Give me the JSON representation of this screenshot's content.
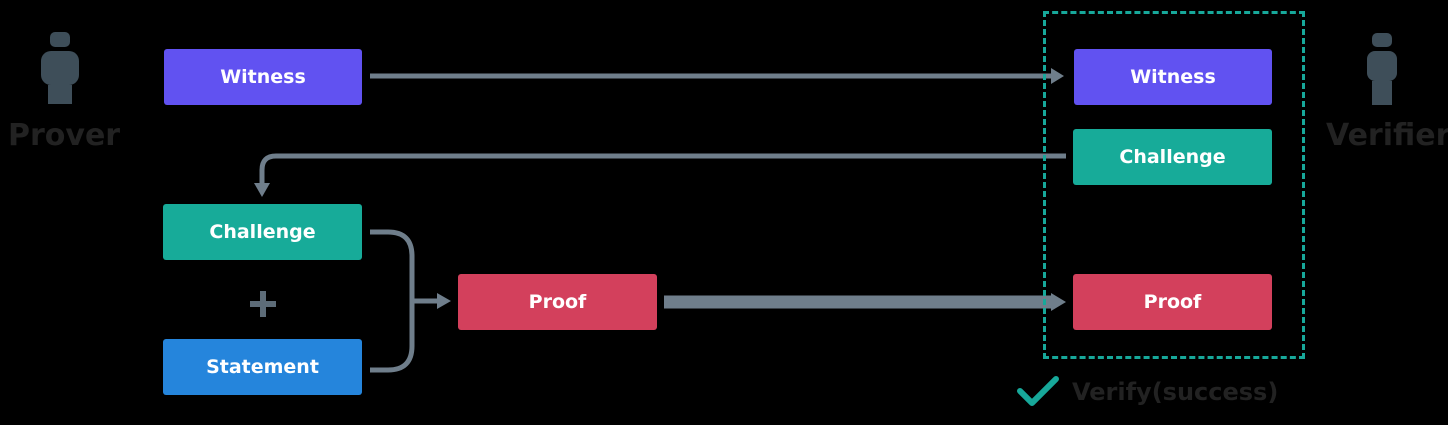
{
  "prover": {
    "label": "Prover",
    "witness_label": "Witness",
    "challenge_label": "Challenge",
    "plus_symbol": "+",
    "statement_label": "Statement",
    "proof_label": "Proof"
  },
  "verifier": {
    "label": "Verifier",
    "witness_label": "Witness",
    "challenge_label": "Challenge",
    "proof_label": "Proof",
    "result_label": "Verify(success)"
  },
  "colors": {
    "witness": "#6152f1",
    "challenge": "#17ab99",
    "statement": "#2585dc",
    "proof": "#d3405c",
    "arrow": "#6f7e8b",
    "frame": "#17a89a",
    "check": "#17a89a",
    "person": "#3e4e59"
  }
}
